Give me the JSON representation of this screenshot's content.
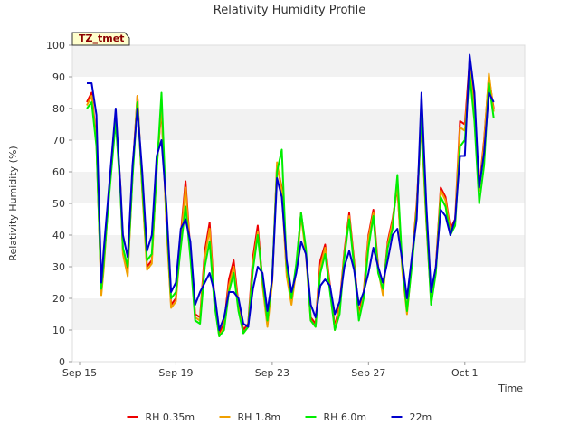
{
  "chart_data": {
    "type": "line",
    "title": "Relativity Humidity Profile",
    "xlabel": "Time",
    "ylabel": "Relativity Humidity (%)",
    "site_label": "TZ_tmet",
    "ylim": [
      0,
      100
    ],
    "yticks": [
      "0",
      "10",
      "20",
      "30",
      "40",
      "50",
      "60",
      "70",
      "80",
      "90",
      "100"
    ],
    "xlim_days": [
      0,
      18
    ],
    "xticks": [
      {
        "day": 0,
        "label": "Sep 15"
      },
      {
        "day": 4,
        "label": "Sep 19"
      },
      {
        "day": 8,
        "label": "Sep 23"
      },
      {
        "day": 12,
        "label": "Sep 27"
      },
      {
        "day": 16,
        "label": "Oct 1"
      }
    ],
    "legend_position": "bottom-center",
    "series": [
      {
        "name": "RH 0.35m",
        "color": "#ee0000",
        "x": [
          0.3,
          0.5,
          0.7,
          0.9,
          1.0,
          1.2,
          1.5,
          1.7,
          1.8,
          2.0,
          2.2,
          2.4,
          2.6,
          2.8,
          3.0,
          3.2,
          3.4,
          3.6,
          3.8,
          4.0,
          4.2,
          4.4,
          4.6,
          4.8,
          5.0,
          5.2,
          5.4,
          5.6,
          5.8,
          6.0,
          6.2,
          6.4,
          6.6,
          6.8,
          7.0,
          7.2,
          7.4,
          7.6,
          7.8,
          8.0,
          8.2,
          8.4,
          8.6,
          8.8,
          9.0,
          9.2,
          9.4,
          9.6,
          9.8,
          10.0,
          10.2,
          10.4,
          10.6,
          10.8,
          11.0,
          11.2,
          11.4,
          11.6,
          11.8,
          12.0,
          12.2,
          12.4,
          12.6,
          12.8,
          13.0,
          13.2,
          13.4,
          13.6,
          13.8,
          14.0,
          14.2,
          14.4,
          14.6,
          14.8,
          15.0,
          15.2,
          15.4,
          15.6,
          15.8,
          16.0,
          16.2,
          16.4,
          16.6,
          16.8,
          17.0,
          17.2
        ],
        "values": [
          82,
          85,
          70,
          22,
          30,
          52,
          78,
          55,
          35,
          28,
          60,
          84,
          55,
          30,
          32,
          62,
          80,
          45,
          18,
          20,
          40,
          57,
          35,
          15,
          14,
          35,
          44,
          20,
          9,
          12,
          26,
          32,
          18,
          10,
          12,
          33,
          43,
          25,
          12,
          26,
          62,
          55,
          28,
          19,
          30,
          47,
          35,
          14,
          12,
          32,
          37,
          24,
          11,
          18,
          35,
          47,
          32,
          15,
          22,
          40,
          48,
          30,
          22,
          38,
          45,
          55,
          30,
          16,
          32,
          50,
          76,
          45,
          20,
          30,
          55,
          52,
          42,
          45,
          76,
          75,
          95,
          80,
          55,
          70,
          90,
          80
        ],
        "dash": false
      },
      {
        "name": "RH 1.8m",
        "color": "#f0a000",
        "x": [
          0.3,
          0.5,
          0.7,
          0.9,
          1.0,
          1.2,
          1.5,
          1.7,
          1.8,
          2.0,
          2.2,
          2.4,
          2.6,
          2.8,
          3.0,
          3.2,
          3.4,
          3.6,
          3.8,
          4.0,
          4.2,
          4.4,
          4.6,
          4.8,
          5.0,
          5.2,
          5.4,
          5.6,
          5.8,
          6.0,
          6.2,
          6.4,
          6.6,
          6.8,
          7.0,
          7.2,
          7.4,
          7.6,
          7.8,
          8.0,
          8.2,
          8.4,
          8.6,
          8.8,
          9.0,
          9.2,
          9.4,
          9.6,
          9.8,
          10.0,
          10.2,
          10.4,
          10.6,
          10.8,
          11.0,
          11.2,
          11.4,
          11.6,
          11.8,
          12.0,
          12.2,
          12.4,
          12.6,
          12.8,
          13.0,
          13.2,
          13.4,
          13.6,
          13.8,
          14.0,
          14.2,
          14.4,
          14.6,
          14.8,
          15.0,
          15.2,
          15.4,
          15.6,
          15.8,
          16.0,
          16.2,
          16.4,
          16.6,
          16.8,
          17.0,
          17.2
        ],
        "values": [
          81,
          84,
          69,
          21,
          29,
          51,
          77,
          54,
          34,
          27,
          59,
          84,
          54,
          29,
          31,
          61,
          81,
          44,
          17,
          19,
          38,
          55,
          34,
          14,
          13,
          33,
          42,
          19,
          8,
          11,
          24,
          30,
          17,
          9,
          11,
          31,
          41,
          24,
          11,
          25,
          63,
          54,
          27,
          18,
          29,
          46,
          34,
          13,
          11,
          30,
          36,
          23,
          10,
          17,
          34,
          46,
          31,
          14,
          21,
          39,
          47,
          29,
          21,
          37,
          44,
          56,
          29,
          15,
          31,
          49,
          75,
          44,
          19,
          29,
          54,
          51,
          41,
          44,
          74,
          73,
          93,
          79,
          54,
          69,
          91,
          79
        ],
        "dash": false
      },
      {
        "name": "RH 6.0m",
        "color": "#00ee00",
        "x": [
          0.3,
          0.5,
          0.7,
          0.9,
          1.0,
          1.2,
          1.5,
          1.7,
          1.8,
          2.0,
          2.2,
          2.4,
          2.6,
          2.8,
          3.0,
          3.2,
          3.4,
          3.6,
          3.8,
          4.0,
          4.2,
          4.4,
          4.6,
          4.8,
          5.0,
          5.2,
          5.4,
          5.6,
          5.8,
          6.0,
          6.2,
          6.4,
          6.6,
          6.8,
          7.0,
          7.2,
          7.4,
          7.6,
          7.8,
          8.0,
          8.2,
          8.4,
          8.6,
          8.8,
          9.0,
          9.2,
          9.4,
          9.6,
          9.8,
          10.0,
          10.2,
          10.4,
          10.6,
          10.8,
          11.0,
          11.2,
          11.4,
          11.6,
          11.8,
          12.0,
          12.2,
          12.4,
          12.6,
          12.8,
          13.0,
          13.2,
          13.4,
          13.6,
          13.8,
          14.0,
          14.2,
          14.4,
          14.6,
          14.8,
          15.0,
          15.2,
          15.4,
          15.6,
          15.8,
          16.0,
          16.2,
          16.4,
          16.6,
          16.8,
          17.0,
          17.2
        ],
        "values": [
          80,
          82,
          68,
          23,
          31,
          50,
          76,
          53,
          36,
          30,
          58,
          82,
          56,
          32,
          34,
          60,
          85,
          47,
          20,
          22,
          36,
          49,
          33,
          13,
          12,
          30,
          38,
          18,
          8,
          10,
          22,
          28,
          16,
          9,
          11,
          29,
          40,
          26,
          13,
          27,
          60,
          67,
          30,
          20,
          31,
          47,
          36,
          13,
          11,
          28,
          34,
          22,
          10,
          15,
          33,
          45,
          30,
          13,
          20,
          36,
          46,
          28,
          23,
          36,
          42,
          59,
          31,
          16,
          30,
          47,
          78,
          46,
          18,
          28,
          52,
          49,
          40,
          43,
          68,
          70,
          91,
          76,
          50,
          62,
          88,
          77
        ],
        "dash": false
      },
      {
        "name": "22m",
        "color": "#0000cc",
        "x": [
          0.3,
          0.5,
          0.7,
          0.9,
          1.0,
          1.2,
          1.5,
          1.7,
          1.8,
          2.0,
          2.2,
          2.4,
          2.6,
          2.8,
          3.0,
          3.2,
          3.4,
          3.6,
          3.8,
          4.0,
          4.2,
          4.4,
          4.6,
          4.8,
          5.0,
          5.2,
          5.4,
          5.6,
          5.8,
          6.0,
          6.2,
          6.4,
          6.6,
          6.8,
          7.0,
          7.2,
          7.4,
          7.6,
          7.8,
          8.0,
          8.2,
          8.4,
          8.6,
          8.8,
          9.0,
          9.2,
          9.4,
          9.6,
          9.8,
          10.0,
          10.2,
          10.4,
          10.6,
          10.8,
          11.0,
          11.2,
          11.4,
          11.6,
          11.8,
          12.0,
          12.2,
          12.4,
          12.6,
          12.8,
          13.0,
          13.2,
          13.4,
          13.6,
          13.8,
          14.0,
          14.2,
          14.4,
          14.6,
          14.8,
          15.0,
          15.2,
          15.4,
          15.6,
          15.8,
          16.0,
          16.2,
          16.4,
          16.6,
          16.8,
          17.0,
          17.2
        ],
        "values": [
          88,
          88,
          78,
          25,
          35,
          53,
          80,
          55,
          40,
          33,
          62,
          80,
          60,
          35,
          40,
          65,
          70,
          50,
          22,
          25,
          42,
          45,
          38,
          18,
          22,
          25,
          28,
          22,
          10,
          14,
          22,
          22,
          20,
          12,
          11,
          23,
          30,
          28,
          16,
          26,
          58,
          52,
          32,
          22,
          28,
          38,
          34,
          18,
          14,
          24,
          26,
          24,
          15,
          19,
          30,
          35,
          29,
          18,
          22,
          28,
          36,
          30,
          25,
          32,
          40,
          42,
          32,
          20,
          33,
          45,
          85,
          50,
          22,
          30,
          48,
          46,
          40,
          45,
          65,
          65,
          97,
          85,
          55,
          66,
          85,
          82
        ],
        "dash": false
      }
    ]
  }
}
